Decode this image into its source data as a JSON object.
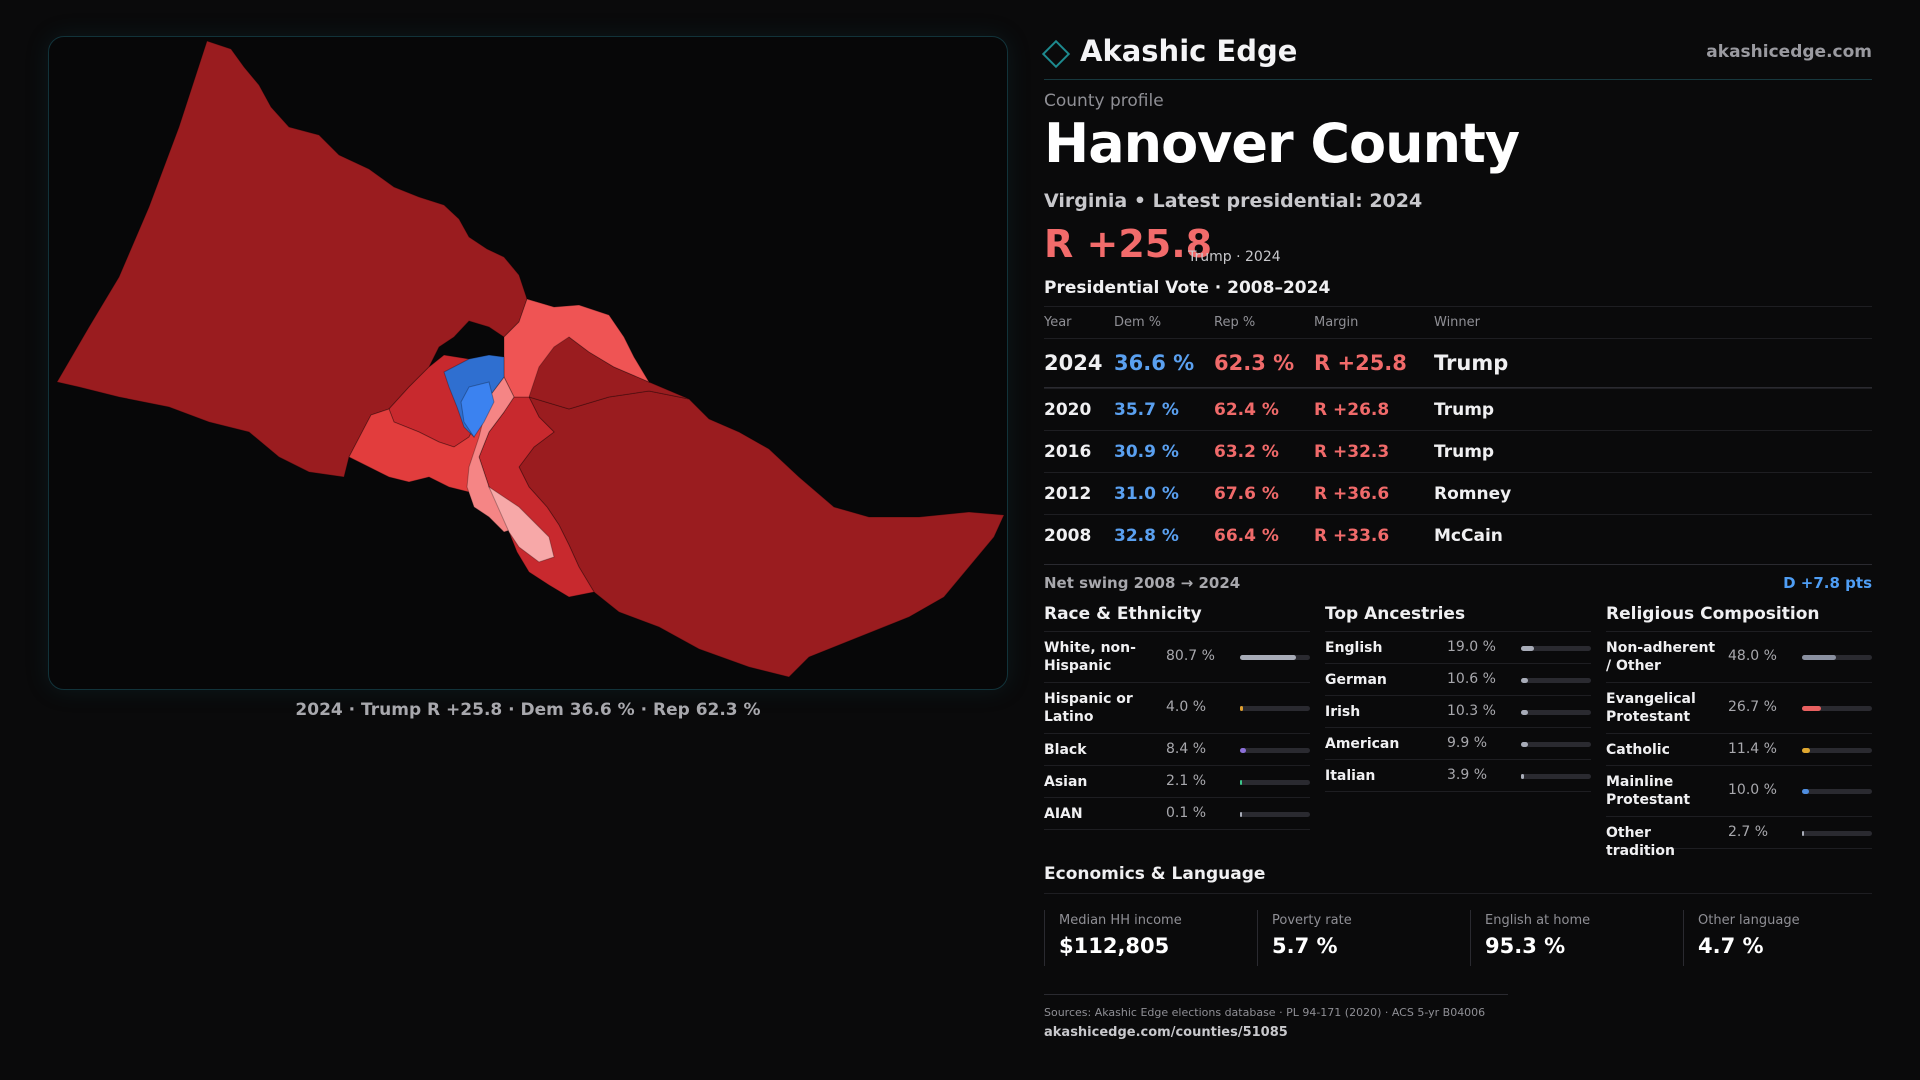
{
  "brand": {
    "name": "Akashic Edge",
    "url": "akashicedge.com"
  },
  "profile_label": "County profile",
  "county": "Hanover County",
  "subtitle": "Virginia • Latest presidential: 2024",
  "headline": {
    "margin": "R +25.8",
    "note": "Trump · 2024"
  },
  "map": {
    "caption": "2024 · Trump R +25.8 · Dem 36.6 % · Rep 62.3 %",
    "colors": {
      "strong_rep": "#9a1c1f",
      "mid_rep": "#c8292e",
      "rep": "#e23d3d",
      "lean_rep": "#ef5454",
      "light_rep": "#f58585",
      "pale_rep": "#f7a8a8",
      "dem": "#2f6fd0",
      "light_dem": "#3b82f0"
    }
  },
  "vote_table": {
    "title": "Presidential Vote · 2008–2024",
    "headers": [
      "Year",
      "Dem %",
      "Rep %",
      "Margin",
      "Winner"
    ],
    "rows": [
      {
        "year": "2024",
        "dem": "36.6 %",
        "rep": "62.3 %",
        "margin": "R +25.8",
        "winner": "Trump"
      },
      {
        "year": "2020",
        "dem": "35.7 %",
        "rep": "62.4 %",
        "margin": "R +26.8",
        "winner": "Trump"
      },
      {
        "year": "2016",
        "dem": "30.9 %",
        "rep": "63.2 %",
        "margin": "R +32.3",
        "winner": "Trump"
      },
      {
        "year": "2012",
        "dem": "31.0 %",
        "rep": "67.6 %",
        "margin": "R +36.6",
        "winner": "Romney"
      },
      {
        "year": "2008",
        "dem": "32.8 %",
        "rep": "66.4 %",
        "margin": "R +33.6",
        "winner": "McCain"
      }
    ]
  },
  "swing": {
    "label": "Net swing 2008 → 2024",
    "value": "D +7.8 pts"
  },
  "race": {
    "title": "Race & Ethnicity",
    "items": [
      {
        "label": "White, non-Hispanic",
        "value": "80.7 %",
        "pct": 80.7,
        "color": "#a8acb8"
      },
      {
        "label": "Hispanic or Latino",
        "value": "4.0 %",
        "pct": 4.0,
        "color": "#e0a030"
      },
      {
        "label": "Black",
        "value": "8.4 %",
        "pct": 8.4,
        "color": "#8b6fd8"
      },
      {
        "label": "Asian",
        "value": "2.1 %",
        "pct": 2.1,
        "color": "#3cc48a"
      },
      {
        "label": "AIAN",
        "value": "0.1 %",
        "pct": 0.1,
        "color": "#a8acb8"
      }
    ]
  },
  "ancestry": {
    "title": "Top Ancestries",
    "items": [
      {
        "label": "English",
        "value": "19.0 %",
        "pct": 19.0,
        "color": "#a8acb8"
      },
      {
        "label": "German",
        "value": "10.6 %",
        "pct": 10.6,
        "color": "#a8acb8"
      },
      {
        "label": "Irish",
        "value": "10.3 %",
        "pct": 10.3,
        "color": "#a8acb8"
      },
      {
        "label": "American",
        "value": "9.9 %",
        "pct": 9.9,
        "color": "#a8acb8"
      },
      {
        "label": "Italian",
        "value": "3.9 %",
        "pct": 3.9,
        "color": "#a8acb8"
      }
    ]
  },
  "religion": {
    "title": "Religious Composition",
    "items": [
      {
        "label": "Non-adherent / Other",
        "value": "48.0 %",
        "pct": 48.0,
        "color": "#8a90a0"
      },
      {
        "label": "Evangelical Protestant",
        "value": "26.7 %",
        "pct": 26.7,
        "color": "#e86060"
      },
      {
        "label": "Catholic",
        "value": "11.4 %",
        "pct": 11.4,
        "color": "#e0a830"
      },
      {
        "label": "Mainline Protestant",
        "value": "10.0 %",
        "pct": 10.0,
        "color": "#4f8ee0"
      },
      {
        "label": "Other tradition",
        "value": "2.7 %",
        "pct": 2.7,
        "color": "#a8acb8"
      }
    ]
  },
  "economics": {
    "title": "Economics & Language",
    "cells": [
      {
        "label": "Median HH income",
        "value": "$112,805"
      },
      {
        "label": "Poverty rate",
        "value": "5.7 %"
      },
      {
        "label": "English at home",
        "value": "95.3 %"
      },
      {
        "label": "Other language",
        "value": "4.7 %"
      }
    ]
  },
  "sources": {
    "text": "Sources: Akashic Edge elections database · PL 94-171 (2020) · ACS 5-yr B04006",
    "url": "akashicedge.com/counties/51085"
  }
}
